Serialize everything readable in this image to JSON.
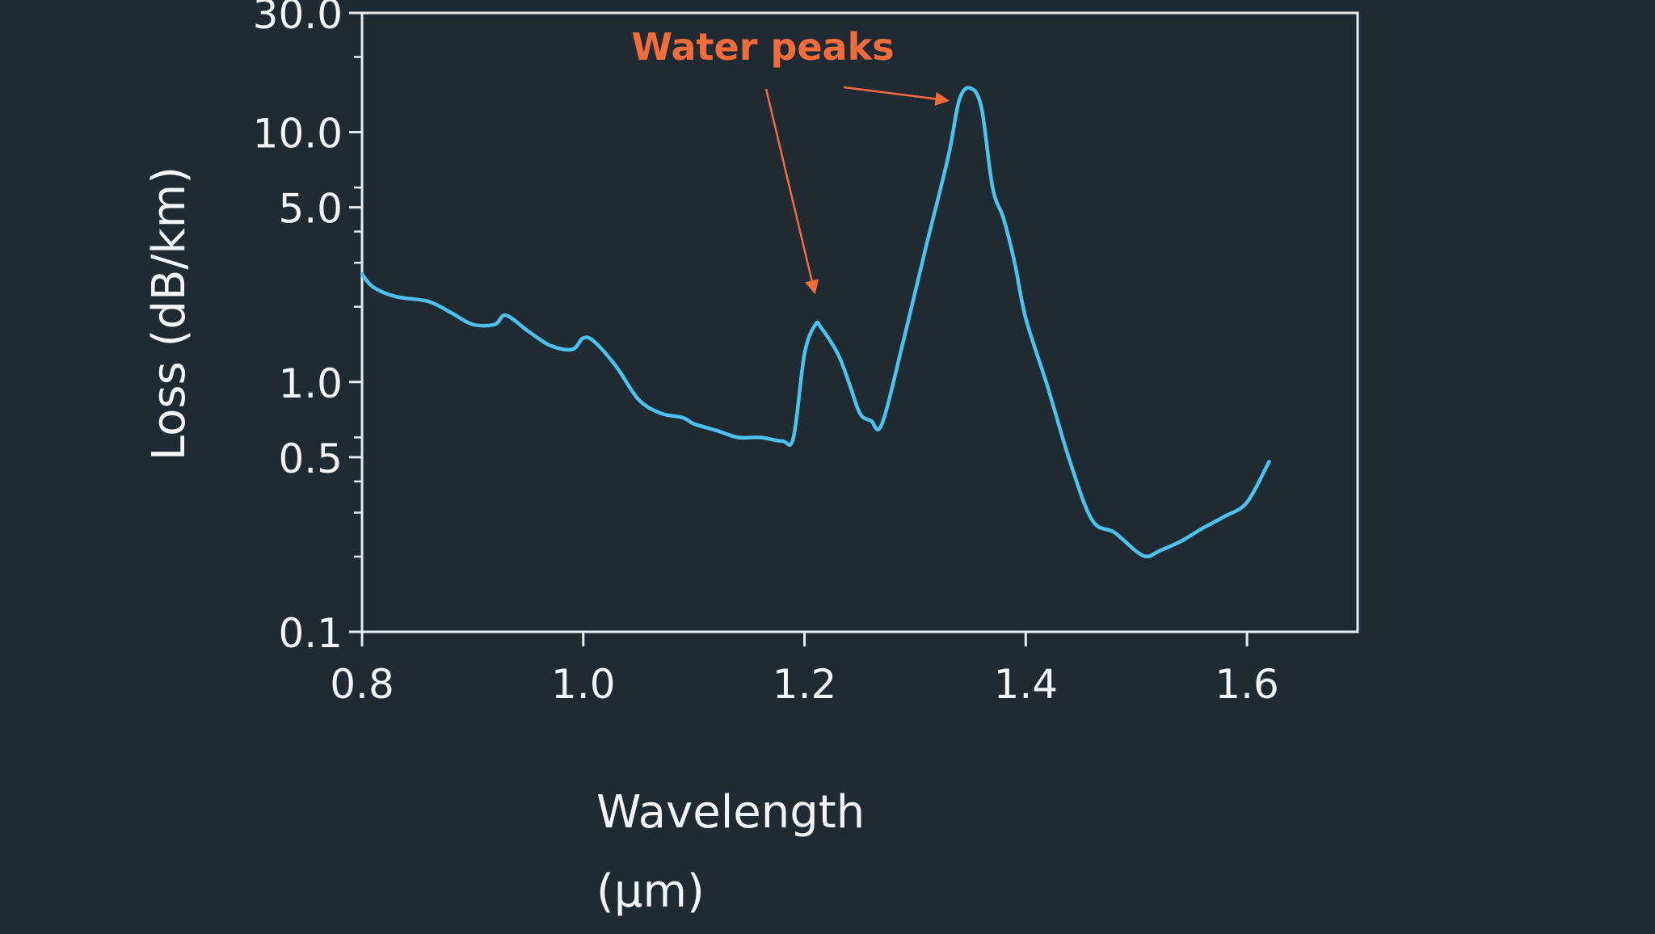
{
  "colors": {
    "background": "#202a33",
    "axis": "#e8ecef",
    "text": "#f2f4f5",
    "series": "#4cc3ef",
    "annotation": "#f26c3c"
  },
  "chart_data": {
    "type": "line",
    "title": "",
    "xlabel": "Wavelength",
    "xlabel_unit": "(μm)",
    "ylabel": "Loss (dB/km)",
    "yscale": "log",
    "xlim": [
      0.8,
      1.7
    ],
    "ylim": [
      0.1,
      30.0
    ],
    "grid": false,
    "x_ticks": [
      {
        "value": 0.8,
        "label": "0.8"
      },
      {
        "value": 1.0,
        "label": "1.0"
      },
      {
        "value": 1.2,
        "label": "1.2"
      },
      {
        "value": 1.4,
        "label": "1.4"
      },
      {
        "value": 1.6,
        "label": "1.6"
      }
    ],
    "y_ticks": [
      {
        "value": 0.1,
        "label": "0.1"
      },
      {
        "value": 0.5,
        "label": "0.5"
      },
      {
        "value": 1.0,
        "label": "1.0"
      },
      {
        "value": 5.0,
        "label": "5.0"
      },
      {
        "value": 10.0,
        "label": "10.0"
      },
      {
        "value": 30.0,
        "label": "30.0"
      }
    ],
    "y_minor_ticks": [
      0.2,
      0.3,
      0.4,
      0.6,
      2.0,
      3.0,
      4.0,
      6.0,
      20.0
    ],
    "series": [
      {
        "x": [
          0.8,
          0.81,
          0.83,
          0.86,
          0.88,
          0.9,
          0.92,
          0.93,
          0.95,
          0.97,
          0.99,
          1.0,
          1.01,
          1.03,
          1.05,
          1.07,
          1.09,
          1.1,
          1.12,
          1.14,
          1.16,
          1.18,
          1.19,
          1.2,
          1.21,
          1.215,
          1.23,
          1.24,
          1.25,
          1.26,
          1.27,
          1.29,
          1.31,
          1.33,
          1.34,
          1.35,
          1.36,
          1.37,
          1.38,
          1.39,
          1.4,
          1.42,
          1.44,
          1.46,
          1.48,
          1.5,
          1.51,
          1.52,
          1.54,
          1.56,
          1.58,
          1.6,
          1.62
        ],
        "y": [
          2.7,
          2.4,
          2.2,
          2.1,
          1.9,
          1.7,
          1.7,
          1.85,
          1.6,
          1.4,
          1.35,
          1.5,
          1.45,
          1.15,
          0.85,
          0.75,
          0.72,
          0.68,
          0.64,
          0.6,
          0.6,
          0.58,
          0.6,
          1.3,
          1.7,
          1.65,
          1.3,
          1.0,
          0.75,
          0.7,
          0.68,
          1.5,
          3.5,
          8.0,
          13.5,
          15.0,
          12.5,
          6.0,
          4.5,
          3.0,
          1.8,
          0.95,
          0.48,
          0.28,
          0.25,
          0.21,
          0.2,
          0.21,
          0.23,
          0.26,
          0.29,
          0.33,
          0.48
        ]
      }
    ],
    "annotations": [
      {
        "text": "Water peaks",
        "targets": [
          {
            "x": 1.21,
            "y": 1.9
          },
          {
            "x": 1.34,
            "y": 14.0
          }
        ]
      }
    ]
  }
}
